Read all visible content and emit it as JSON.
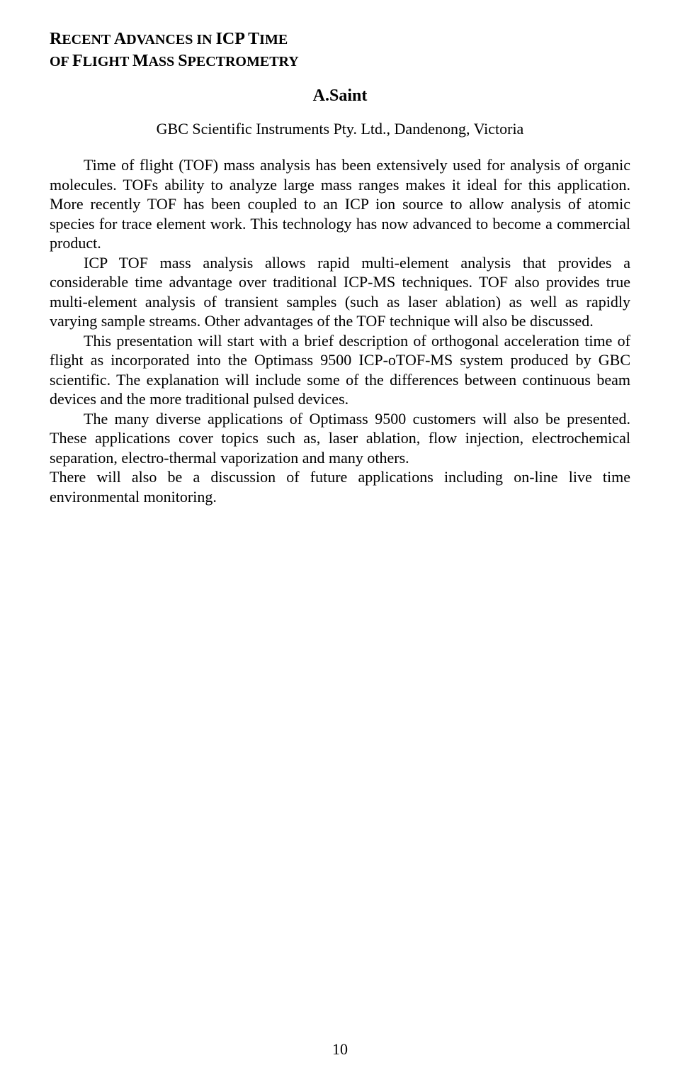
{
  "title": {
    "line1_prefix": "R",
    "line1_mid": "ECENT ",
    "line1_a": "A",
    "line1_dvances": "DVANCES IN ",
    "line1_icp": "ICP",
    "line1_time": " T",
    "line1_ime": "IME",
    "line2_of": "OF ",
    "line2_f": "F",
    "line2_light": "LIGHT ",
    "line2_m": "M",
    "line2_ass": "ASS ",
    "line2_s": "S",
    "line2_pect": "PECTROMETRY"
  },
  "author": "A.Saint",
  "affiliation": "GBC Scientific Instruments Pty. Ltd., Dandenong, Victoria",
  "paragraphs": {
    "p1": "Time of flight (TOF) mass analysis has been extensively used for analysis of organic molecules. TOFs ability to analyze large mass ranges makes it ideal for this application. More recently TOF has been coupled to an ICP ion source to allow analysis of atomic species for trace element work. This technology has now advanced to become a commercial product.",
    "p2": "ICP TOF mass analysis allows rapid multi-element analysis that provides a considerable time advantage over traditional ICP-MS techniques. TOF also provides true multi-element analysis of transient samples (such as laser ablation) as well as rapidly varying sample streams. Other advantages of the TOF technique will also be discussed.",
    "p3": "This presentation will start with a brief description of orthogonal acceleration time of flight as incorporated into the Optimass 9500 ICP-oTOF-MS system produced by GBC scientific. The explanation will include some of the differences between continuous beam devices and the more traditional pulsed devices.",
    "p4": "The many diverse applications of Optimass 9500 customers will also be presented. These applications cover topics such as, laser ablation, flow injection, electrochemical separation, electro-thermal vaporization and many others.",
    "p5": "There will also be a discussion of future applications including on-line live time environmental monitoring."
  },
  "pageNumber": "10"
}
